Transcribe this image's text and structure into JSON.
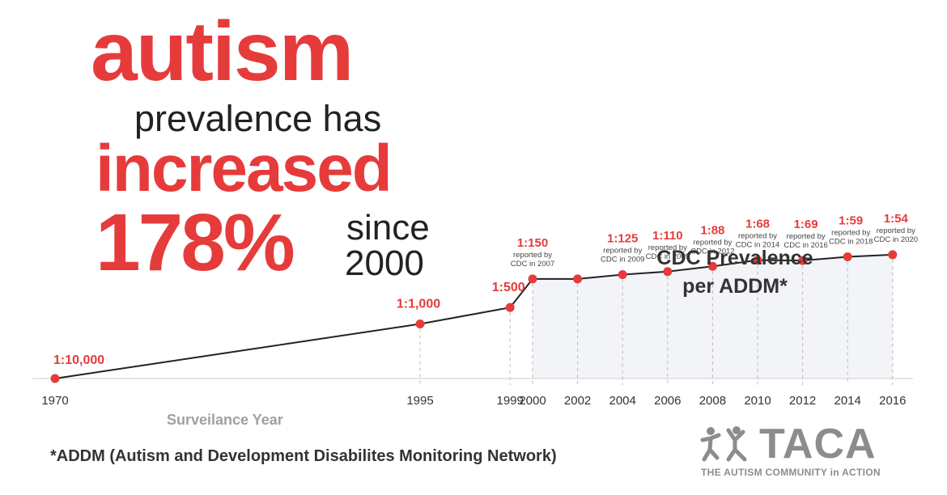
{
  "headline": {
    "word1": "autism",
    "line2": "prevalence has",
    "word3": "increased",
    "percent": "178%",
    "since": "since",
    "year": "2000"
  },
  "footnote": "*ADDM (Autism and Development Disabilites Monitoring Network)",
  "logo": {
    "name": "TACA",
    "tagline": "THE AUTISM COMMUNITY in ACTION",
    "icon": "people-figures-icon"
  },
  "colors": {
    "accent": "#e63b3b",
    "line": "#222222",
    "area": "#f2f4f7",
    "gridline": "#bbbbbb",
    "axis": "#dddddd",
    "logo_gray": "#8c8c8c"
  },
  "chart_data": {
    "type": "line",
    "area_label": "CDC Prevalence per ADDM*",
    "xlabel": "Surveilance Year",
    "ylabel": "",
    "shaded_from_year": 2000,
    "y_scale": "log (cases per 10,000 children)",
    "x": [
      1970,
      1995,
      1999,
      2000,
      2002,
      2004,
      2006,
      2008,
      2010,
      2012,
      2014,
      2016
    ],
    "tick_labels": [
      "1970",
      "1995",
      "1999",
      "2000",
      "2002",
      "2004",
      "2006",
      "2008",
      "2010",
      "2012",
      "2014",
      "2016"
    ],
    "values": [
      1,
      10,
      20,
      66.7,
      66.7,
      80,
      90.9,
      113.6,
      147.1,
      144.9,
      169.5,
      185.2
    ],
    "point_labels": [
      "1:10,000",
      "1:1,000",
      "1:500",
      "1:150",
      "",
      "1:125",
      "1:110",
      "1:88",
      "1:68",
      "1:69",
      "1:59",
      "1:54"
    ],
    "point_notes": [
      [],
      [],
      [],
      [
        "reported by",
        "CDC in 2007"
      ],
      [],
      [
        "reported by",
        "CDC in 2009"
      ],
      [
        "reported by",
        "CDC in 2009"
      ],
      [
        "reported by",
        "CDC in 2012"
      ],
      [
        "reported by",
        "CDC in 2014"
      ],
      [
        "reported by",
        "CDC in 2016"
      ],
      [
        "reported by",
        "CDC in 2018"
      ],
      [
        "reported by",
        "CDC in 2020"
      ]
    ],
    "grid": false,
    "legend": "none"
  }
}
